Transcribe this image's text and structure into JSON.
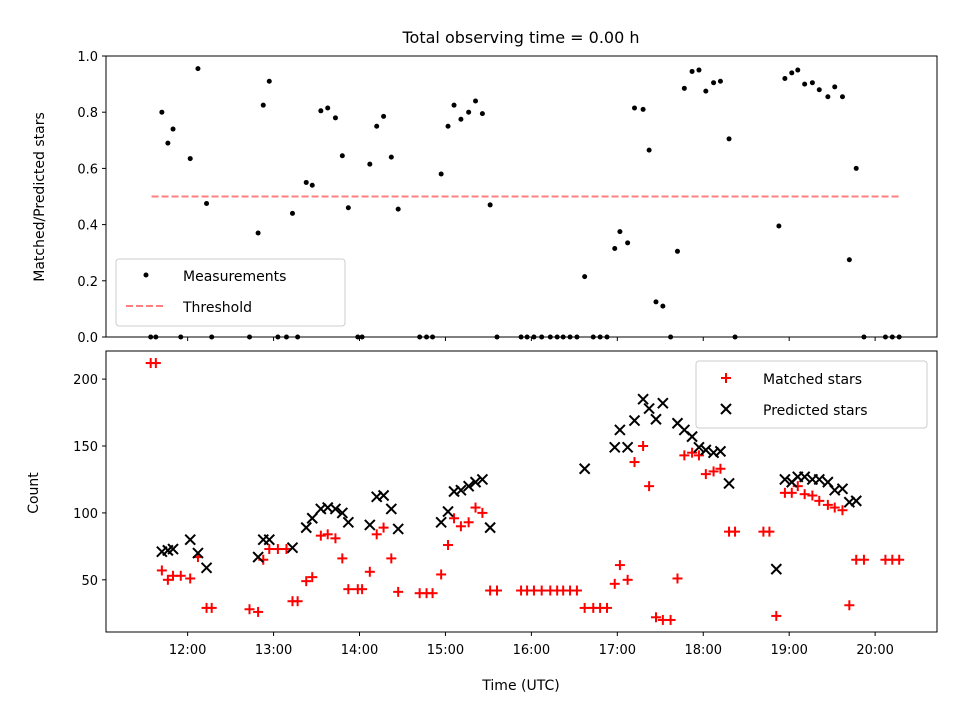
{
  "chart_data": [
    {
      "type": "scatter",
      "title": "Total observing time = 0.00 h",
      "xlabel": "",
      "ylabel": "Matched/Predicted stars",
      "ylim": [
        0,
        1.0
      ],
      "yticks": [
        "0.0",
        "0.2",
        "0.4",
        "0.6",
        "0.8",
        "1.0"
      ],
      "xlim_hours": [
        11.05,
        20.72
      ],
      "legend": {
        "placement": "lower-left",
        "entries": [
          "Measurements",
          "Threshold"
        ]
      },
      "threshold": {
        "name": "Threshold",
        "value": 0.5,
        "x_range": [
          11.58,
          20.3
        ],
        "color": "#ff7f7f",
        "style": "dashed"
      },
      "series": [
        {
          "name": "Measurements",
          "color": "#000000",
          "points": [
            [
              11.57,
              0.0
            ],
            [
              11.63,
              0.0
            ],
            [
              11.7,
              0.8
            ],
            [
              11.77,
              0.69
            ],
            [
              11.83,
              0.74
            ],
            [
              11.92,
              0.0
            ],
            [
              12.03,
              0.635
            ],
            [
              12.12,
              0.955
            ],
            [
              12.22,
              0.475
            ],
            [
              12.28,
              0.0
            ],
            [
              12.72,
              0.0
            ],
            [
              12.82,
              0.37
            ],
            [
              12.88,
              0.825
            ],
            [
              12.95,
              0.91
            ],
            [
              13.05,
              0.0
            ],
            [
              13.15,
              0.0
            ],
            [
              13.22,
              0.44
            ],
            [
              13.28,
              0.0
            ],
            [
              13.38,
              0.55
            ],
            [
              13.45,
              0.54
            ],
            [
              13.55,
              0.805
            ],
            [
              13.63,
              0.815
            ],
            [
              13.72,
              0.78
            ],
            [
              13.8,
              0.645
            ],
            [
              13.87,
              0.46
            ],
            [
              13.98,
              0.0
            ],
            [
              14.03,
              0.0
            ],
            [
              14.12,
              0.615
            ],
            [
              14.2,
              0.75
            ],
            [
              14.28,
              0.785
            ],
            [
              14.37,
              0.64
            ],
            [
              14.45,
              0.455
            ],
            [
              14.7,
              0.0
            ],
            [
              14.78,
              0.0
            ],
            [
              14.85,
              0.0
            ],
            [
              14.95,
              0.58
            ],
            [
              15.03,
              0.75
            ],
            [
              15.1,
              0.825
            ],
            [
              15.18,
              0.775
            ],
            [
              15.27,
              0.8
            ],
            [
              15.35,
              0.84
            ],
            [
              15.43,
              0.795
            ],
            [
              15.52,
              0.47
            ],
            [
              15.6,
              0.0
            ],
            [
              15.88,
              0.0
            ],
            [
              15.95,
              0.0
            ],
            [
              16.03,
              0.0
            ],
            [
              16.12,
              0.0
            ],
            [
              16.22,
              0.0
            ],
            [
              16.3,
              0.0
            ],
            [
              16.37,
              0.0
            ],
            [
              16.45,
              0.0
            ],
            [
              16.53,
              0.0
            ],
            [
              16.62,
              0.215
            ],
            [
              16.72,
              0.0
            ],
            [
              16.8,
              0.0
            ],
            [
              16.88,
              0.0
            ],
            [
              16.97,
              0.315
            ],
            [
              17.03,
              0.375
            ],
            [
              17.12,
              0.335
            ],
            [
              17.2,
              0.815
            ],
            [
              17.3,
              0.81
            ],
            [
              17.37,
              0.665
            ],
            [
              17.45,
              0.125
            ],
            [
              17.53,
              0.11
            ],
            [
              17.62,
              0.0
            ],
            [
              17.7,
              0.305
            ],
            [
              17.78,
              0.885
            ],
            [
              17.87,
              0.945
            ],
            [
              17.95,
              0.95
            ],
            [
              18.03,
              0.875
            ],
            [
              18.12,
              0.905
            ],
            [
              18.2,
              0.91
            ],
            [
              18.3,
              0.705
            ],
            [
              18.37,
              0.0
            ],
            [
              18.88,
              0.395
            ],
            [
              18.95,
              0.92
            ],
            [
              19.03,
              0.94
            ],
            [
              19.1,
              0.95
            ],
            [
              19.18,
              0.9
            ],
            [
              19.27,
              0.905
            ],
            [
              19.35,
              0.88
            ],
            [
              19.45,
              0.855
            ],
            [
              19.53,
              0.89
            ],
            [
              19.62,
              0.855
            ],
            [
              19.7,
              0.275
            ],
            [
              19.78,
              0.6
            ],
            [
              19.87,
              0.0
            ],
            [
              20.12,
              0.0
            ],
            [
              20.2,
              0.0
            ],
            [
              20.28,
              0.0
            ]
          ]
        }
      ]
    },
    {
      "type": "scatter",
      "title": "",
      "xlabel": "Time (UTC)",
      "ylabel": "Count",
      "ylim": [
        11,
        221
      ],
      "yticks": [
        "50",
        "100",
        "150",
        "200"
      ],
      "xticks": [
        "12:00",
        "13:00",
        "14:00",
        "15:00",
        "16:00",
        "17:00",
        "18:00",
        "19:00",
        "20:00"
      ],
      "xlim_hours": [
        11.05,
        20.72
      ],
      "legend": {
        "placement": "top-right",
        "entries": [
          "Matched stars",
          "Predicted stars"
        ]
      },
      "series": [
        {
          "name": "Matched stars",
          "marker": "+",
          "color": "#ff0000",
          "points": [
            [
              11.57,
              212
            ],
            [
              11.63,
              212
            ],
            [
              11.7,
              57
            ],
            [
              11.77,
              50
            ],
            [
              11.83,
              53
            ],
            [
              11.92,
              53
            ],
            [
              12.03,
              51
            ],
            [
              12.12,
              67
            ],
            [
              12.22,
              29
            ],
            [
              12.28,
              29
            ],
            [
              12.72,
              28
            ],
            [
              12.82,
              26
            ],
            [
              12.88,
              65
            ],
            [
              12.95,
              73
            ],
            [
              13.05,
              73
            ],
            [
              13.15,
              73
            ],
            [
              13.22,
              34
            ],
            [
              13.28,
              34
            ],
            [
              13.38,
              49
            ],
            [
              13.45,
              52
            ],
            [
              13.55,
              83
            ],
            [
              13.63,
              84
            ],
            [
              13.72,
              81
            ],
            [
              13.8,
              66
            ],
            [
              13.87,
              43
            ],
            [
              13.98,
              43
            ],
            [
              14.03,
              43
            ],
            [
              14.12,
              56
            ],
            [
              14.2,
              84
            ],
            [
              14.28,
              89
            ],
            [
              14.37,
              66
            ],
            [
              14.45,
              41
            ],
            [
              14.7,
              40
            ],
            [
              14.78,
              40
            ],
            [
              14.85,
              40
            ],
            [
              14.95,
              54
            ],
            [
              15.03,
              76
            ],
            [
              15.1,
              96
            ],
            [
              15.18,
              90
            ],
            [
              15.27,
              93
            ],
            [
              15.35,
              104
            ],
            [
              15.43,
              100
            ],
            [
              15.52,
              42
            ],
            [
              15.6,
              42
            ],
            [
              15.88,
              42
            ],
            [
              15.95,
              42
            ],
            [
              16.03,
              42
            ],
            [
              16.12,
              42
            ],
            [
              16.22,
              42
            ],
            [
              16.3,
              42
            ],
            [
              16.37,
              42
            ],
            [
              16.45,
              42
            ],
            [
              16.53,
              42
            ],
            [
              16.62,
              29
            ],
            [
              16.72,
              29
            ],
            [
              16.8,
              29
            ],
            [
              16.88,
              29
            ],
            [
              16.97,
              47
            ],
            [
              17.03,
              61
            ],
            [
              17.12,
              50
            ],
            [
              17.2,
              138
            ],
            [
              17.3,
              150
            ],
            [
              17.37,
              120
            ],
            [
              17.45,
              22
            ],
            [
              17.53,
              20
            ],
            [
              17.62,
              20
            ],
            [
              17.7,
              51
            ],
            [
              17.78,
              143
            ],
            [
              17.87,
              145
            ],
            [
              17.95,
              143
            ],
            [
              18.03,
              129
            ],
            [
              18.12,
              131
            ],
            [
              18.2,
              133
            ],
            [
              18.3,
              86
            ],
            [
              18.37,
              86
            ],
            [
              18.7,
              86
            ],
            [
              18.77,
              86
            ],
            [
              18.85,
              23
            ],
            [
              18.95,
              115
            ],
            [
              19.03,
              115
            ],
            [
              19.1,
              120
            ],
            [
              19.18,
              114
            ],
            [
              19.27,
              113
            ],
            [
              19.35,
              109
            ],
            [
              19.45,
              106
            ],
            [
              19.53,
              104
            ],
            [
              19.62,
              102
            ],
            [
              19.7,
              31
            ],
            [
              19.78,
              65
            ],
            [
              19.87,
              65
            ],
            [
              20.12,
              65
            ],
            [
              20.2,
              65
            ],
            [
              20.28,
              65
            ]
          ]
        },
        {
          "name": "Predicted stars",
          "marker": "x",
          "color": "#000000",
          "points": [
            [
              11.7,
              71
            ],
            [
              11.77,
              72
            ],
            [
              11.83,
              73
            ],
            [
              12.03,
              80
            ],
            [
              12.12,
              70
            ],
            [
              12.22,
              59
            ],
            [
              12.82,
              67
            ],
            [
              12.88,
              80
            ],
            [
              12.95,
              80
            ],
            [
              13.22,
              74
            ],
            [
              13.38,
              89
            ],
            [
              13.45,
              96
            ],
            [
              13.55,
              103
            ],
            [
              13.63,
              104
            ],
            [
              13.72,
              103
            ],
            [
              13.8,
              100
            ],
            [
              13.87,
              93
            ],
            [
              14.12,
              91
            ],
            [
              14.2,
              112
            ],
            [
              14.28,
              113
            ],
            [
              14.37,
              103
            ],
            [
              14.45,
              88
            ],
            [
              14.95,
              93
            ],
            [
              15.03,
              101
            ],
            [
              15.1,
              116
            ],
            [
              15.18,
              117
            ],
            [
              15.27,
              120
            ],
            [
              15.35,
              123
            ],
            [
              15.43,
              125
            ],
            [
              15.52,
              89
            ],
            [
              16.62,
              133
            ],
            [
              16.97,
              149
            ],
            [
              17.03,
              162
            ],
            [
              17.12,
              149
            ],
            [
              17.2,
              169
            ],
            [
              17.3,
              185
            ],
            [
              17.37,
              178
            ],
            [
              17.45,
              170
            ],
            [
              17.53,
              182
            ],
            [
              17.7,
              167
            ],
            [
              17.78,
              162
            ],
            [
              17.87,
              157
            ],
            [
              17.95,
              149
            ],
            [
              18.03,
              147
            ],
            [
              18.12,
              145
            ],
            [
              18.2,
              146
            ],
            [
              18.3,
              122
            ],
            [
              18.85,
              58
            ],
            [
              18.95,
              125
            ],
            [
              19.03,
              123
            ],
            [
              19.1,
              127
            ],
            [
              19.18,
              127
            ],
            [
              19.27,
              125
            ],
            [
              19.35,
              125
            ],
            [
              19.45,
              123
            ],
            [
              19.53,
              117
            ],
            [
              19.62,
              118
            ],
            [
              19.7,
              108
            ],
            [
              19.78,
              109
            ]
          ]
        }
      ]
    }
  ]
}
